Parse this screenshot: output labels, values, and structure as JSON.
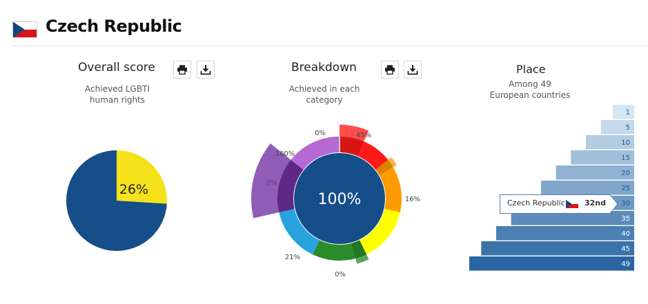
{
  "header": {
    "country": "Czech Republic",
    "flag_icon": "czech-flag-icon"
  },
  "overall": {
    "title": "Overall score",
    "subtitle_line1": "Achieved LGBTI",
    "subtitle_line2": "human rights",
    "print_icon": "print-icon",
    "download_icon": "download-icon"
  },
  "breakdown": {
    "title": "Breakdown",
    "subtitle_line1": "Achieved in each",
    "subtitle_line2": "category",
    "center_label": "100%",
    "print_icon": "print-icon",
    "download_icon": "download-icon"
  },
  "place": {
    "title": "Place",
    "subtitle_line1": "Among 49",
    "subtitle_line2": "European countries",
    "tooltip_country": "Czech Republic",
    "tooltip_rank": "32nd"
  },
  "chart_data": [
    {
      "type": "pie",
      "values": [
        26,
        74
      ],
      "label": "26%",
      "colors": [
        "#f5e21a",
        "#154e89"
      ]
    },
    {
      "type": "pie",
      "series": [
        {
          "value": 45,
          "label": "45%",
          "color": "#ff1a1a"
        },
        {
          "value": 16,
          "label": "16%",
          "color": "#ff9b00"
        },
        {
          "value": 0,
          "label": "0%",
          "color": "#ffff00"
        },
        {
          "value": 21,
          "label": "21%",
          "color": "#2a8c2a"
        },
        {
          "value": 0,
          "label": "0%",
          "color": "#29a3de"
        },
        {
          "value": 100,
          "label": "100%",
          "color": "#7030a0"
        },
        {
          "value": 0,
          "label": "0%",
          "color": "#b569d2"
        }
      ]
    },
    {
      "type": "bar",
      "categories": [
        "1",
        "5",
        "10",
        "15",
        "20",
        "25",
        "30",
        "35",
        "40",
        "45",
        "49"
      ],
      "values": [
        1,
        5,
        10,
        15,
        20,
        25,
        30,
        35,
        40,
        45,
        49
      ],
      "highlight": "32nd"
    }
  ]
}
